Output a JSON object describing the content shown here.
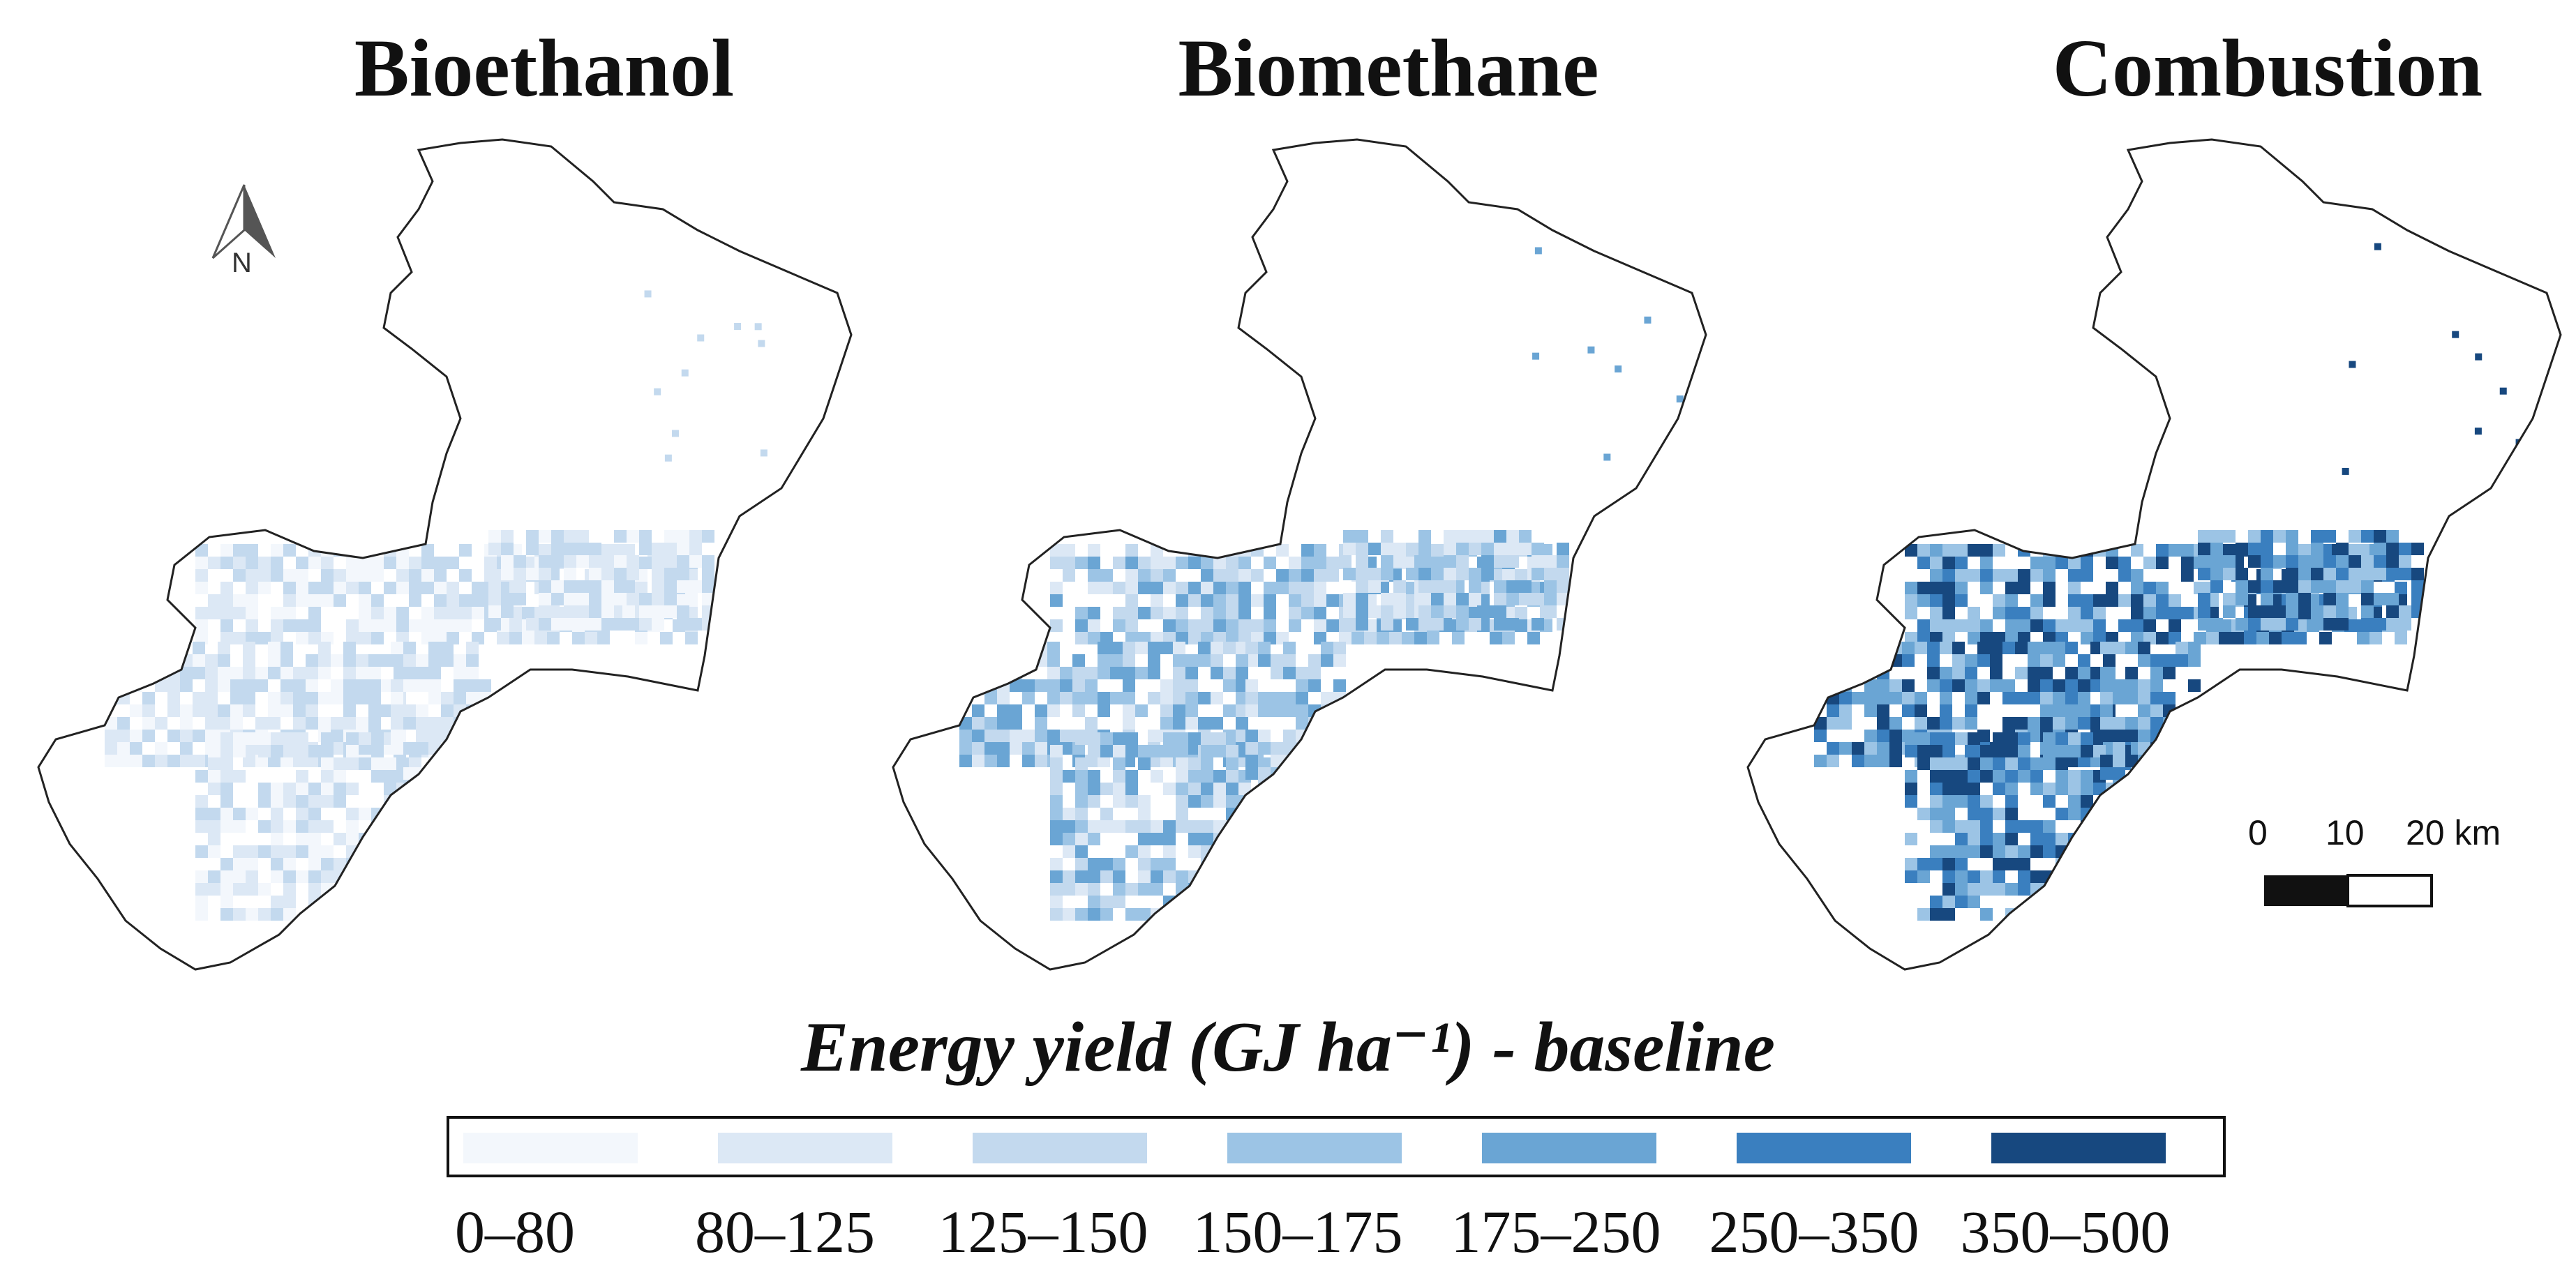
{
  "panels": [
    {
      "title": "Bioethanol",
      "fill_classes": [
        0,
        1,
        2
      ]
    },
    {
      "title": "Biomethane",
      "fill_classes": [
        1,
        2,
        3,
        4
      ]
    },
    {
      "title": "Combustion",
      "fill_classes": [
        3,
        4,
        5,
        6
      ]
    }
  ],
  "north_arrow": {
    "label": "N"
  },
  "scale_bar": {
    "labels": [
      "0",
      "10",
      "20 km"
    ]
  },
  "legend": {
    "title": "Energy yield (GJ ha⁻¹) - baseline",
    "classes": [
      {
        "label": "0–80",
        "color": "#f3f7fc"
      },
      {
        "label": "80–125",
        "color": "#dce8f5"
      },
      {
        "label": "125–150",
        "color": "#c3d9ee"
      },
      {
        "label": "150–175",
        "color": "#9cc4e5"
      },
      {
        "label": "175–250",
        "color": "#6aa5d4"
      },
      {
        "label": "250–350",
        "color": "#3a7fbf"
      },
      {
        "label": "350–500",
        "color": "#17487f"
      }
    ]
  }
}
